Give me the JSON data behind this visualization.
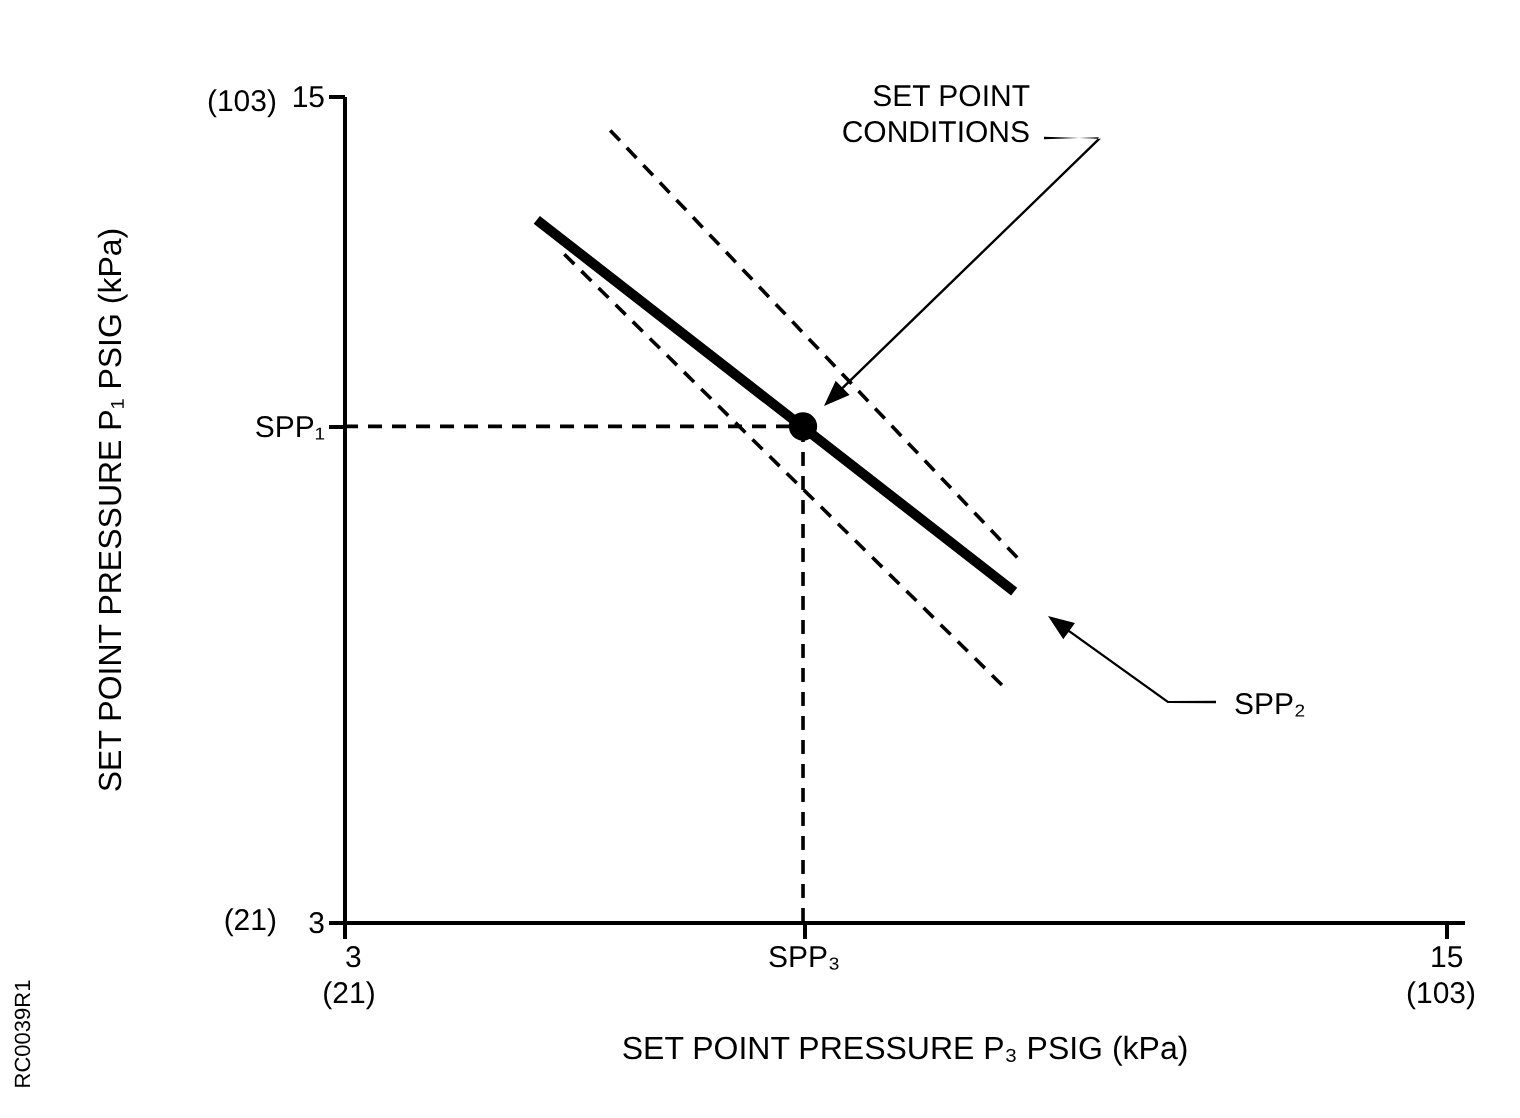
{
  "chart_data": {
    "type": "line",
    "xlabel": "SET POINT PRESSURE P₃ PSIG (kPa)",
    "y2label": "SET POINT PRESSURE P₁ PSIG (kPa)",
    "xlim": [
      3,
      15.2
    ],
    "ylim": [
      3,
      15
    ],
    "xticks": [
      3,
      {
        "value": 8,
        "label": "SPP₃"
      },
      15
    ],
    "yticks": [
      3,
      {
        "value": 10.2,
        "label": "SPP₁"
      },
      15
    ],
    "x2lim": [
      20.7,
      104.8
    ],
    "x2ticks": [
      {
        "value": 21,
        "label": "(21)"
      },
      {
        "value": 103,
        "label": "(103)"
      }
    ],
    "y2lim": [
      20.7,
      103.4
    ],
    "y2ticks": [
      {
        "value": 21,
        "label": "(21)"
      },
      {
        "value": 103,
        "label": "(103)"
      }
    ],
    "grid": false,
    "series": [
      {
        "color": "#000000",
        "line_style": "dashed",
        "x": [
          5.9,
          10.4
        ],
        "values": [
          14.5,
          8.2
        ]
      },
      {
        "color": "#000000",
        "line_style": "dashed",
        "x": [
          5.4,
          10.2
        ],
        "values": [
          12.7,
          6.4
        ]
      },
      {
        "color": "#000000",
        "line_style": "solid",
        "x": [
          5.1,
          10.3
        ],
        "values": [
          13.2,
          7.8
        ]
      },
      {
        "color": "#000000",
        "line_style": "dashed",
        "x": [
          3,
          8
        ],
        "values": [
          10.2,
          10.2
        ]
      },
      {
        "color": "#000000",
        "line_style": "dashed",
        "x": [
          8,
          8
        ],
        "values": [
          3,
          10.2
        ]
      },
      {
        "type": "scatter",
        "color": "#000000",
        "marker": "circle",
        "x": [
          8
        ],
        "values": [
          10.2
        ]
      }
    ],
    "annotations": [
      "SET POINT\nCONDITIONS",
      "SPP₂",
      "RC0039R1"
    ]
  }
}
